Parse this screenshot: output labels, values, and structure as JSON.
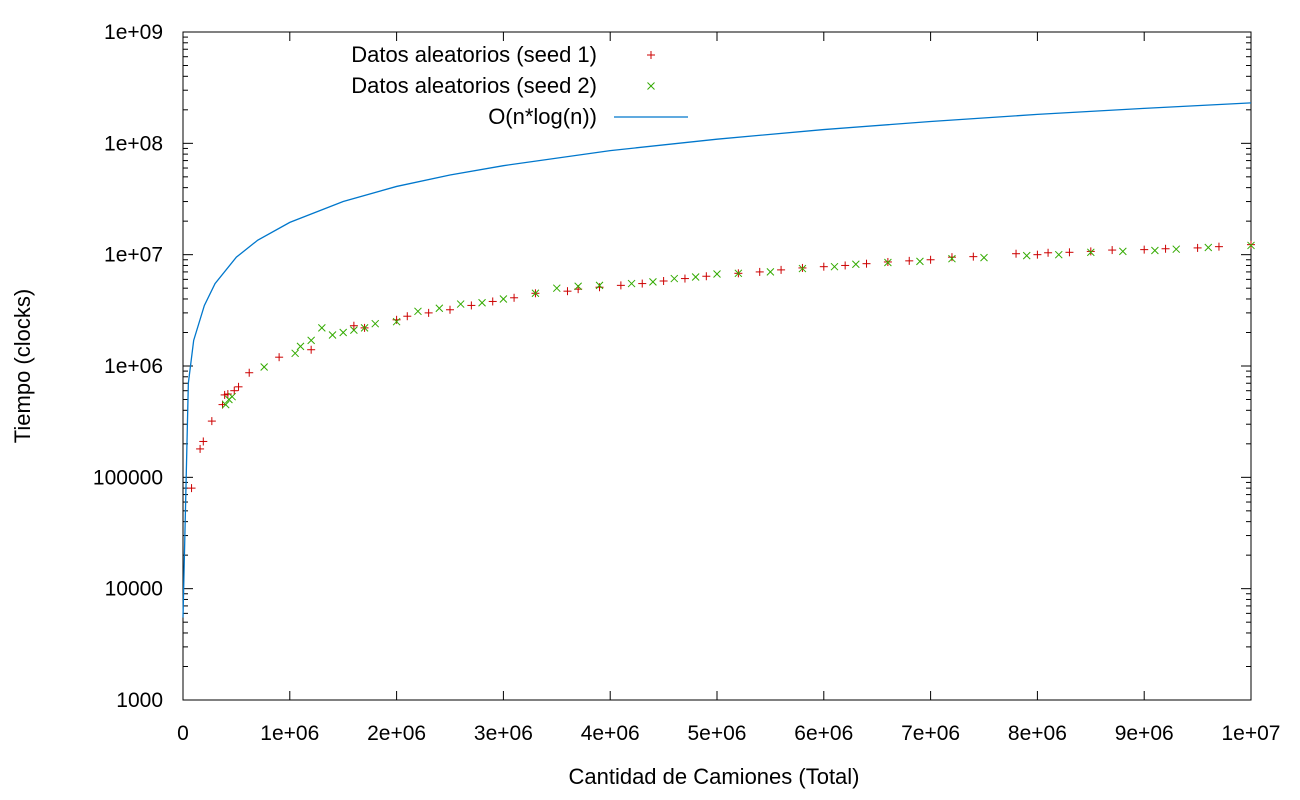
{
  "chart_data": {
    "type": "scatter",
    "title": "",
    "xlabel": "Cantidad de Camiones (Total)",
    "ylabel": "Tiempo (clocks)",
    "xlim": [
      0,
      10000000
    ],
    "ylim": [
      1000,
      1000000000
    ],
    "yscale": "log",
    "grid": false,
    "legend_position": "top-left",
    "x_ticks": [
      {
        "value": 0,
        "label": "0"
      },
      {
        "value": 1000000,
        "label": "1e+06"
      },
      {
        "value": 2000000,
        "label": "2e+06"
      },
      {
        "value": 3000000,
        "label": "3e+06"
      },
      {
        "value": 4000000,
        "label": "4e+06"
      },
      {
        "value": 5000000,
        "label": "5e+06"
      },
      {
        "value": 6000000,
        "label": "6e+06"
      },
      {
        "value": 7000000,
        "label": "7e+06"
      },
      {
        "value": 8000000,
        "label": "8e+06"
      },
      {
        "value": 9000000,
        "label": "9e+06"
      },
      {
        "value": 10000000,
        "label": "1e+07"
      }
    ],
    "y_ticks": [
      {
        "value": 1000,
        "label": "1000"
      },
      {
        "value": 10000,
        "label": "10000"
      },
      {
        "value": 100000,
        "label": "100000"
      },
      {
        "value": 1000000,
        "label": "1e+06"
      },
      {
        "value": 10000000,
        "label": "1e+07"
      },
      {
        "value": 100000000,
        "label": "1e+08"
      },
      {
        "value": 1000000000,
        "label": "1e+09"
      }
    ],
    "series": [
      {
        "name": "Datos aleatorios (seed 1)",
        "kind": "points",
        "marker": "plus",
        "color": "#cc0000",
        "x": [
          80000,
          160000,
          190000,
          270000,
          370000,
          390000,
          420000,
          480000,
          520000,
          620000,
          900000,
          1200000,
          1600000,
          1700000,
          2000000,
          2100000,
          2300000,
          2500000,
          2700000,
          2900000,
          3100000,
          3300000,
          3600000,
          3700000,
          3900000,
          4100000,
          4300000,
          4500000,
          4700000,
          4900000,
          5200000,
          5400000,
          5600000,
          5800000,
          6000000,
          6200000,
          6400000,
          6600000,
          6800000,
          7000000,
          7200000,
          7400000,
          7800000,
          8000000,
          8100000,
          8300000,
          8500000,
          8700000,
          9000000,
          9200000,
          9500000,
          9700000,
          10000000
        ],
        "y": [
          80000,
          180000,
          210000,
          320000,
          450000,
          550000,
          560000,
          600000,
          650000,
          870000,
          1200000,
          1400000,
          2300000,
          2200000,
          2600000,
          2800000,
          3000000,
          3200000,
          3500000,
          3800000,
          4100000,
          4500000,
          4700000,
          4900000,
          5100000,
          5300000,
          5500000,
          5800000,
          6100000,
          6400000,
          6800000,
          7000000,
          7300000,
          7600000,
          7800000,
          8000000,
          8300000,
          8600000,
          8800000,
          9000000,
          9500000,
          9600000,
          10200000,
          10000000,
          10400000,
          10500000,
          10700000,
          11000000,
          11100000,
          11300000,
          11500000,
          11800000,
          12300000
        ]
      },
      {
        "name": "Datos aleatorios (seed 2)",
        "kind": "points",
        "marker": "cross",
        "color": "#33aa00",
        "x": [
          400000,
          430000,
          460000,
          760000,
          1050000,
          1100000,
          1200000,
          1300000,
          1400000,
          1500000,
          1600000,
          1700000,
          1800000,
          2000000,
          2200000,
          2400000,
          2600000,
          2800000,
          3000000,
          3300000,
          3500000,
          3700000,
          3900000,
          4200000,
          4400000,
          4600000,
          4800000,
          5000000,
          5200000,
          5500000,
          5800000,
          6100000,
          6300000,
          6600000,
          6900000,
          7200000,
          7500000,
          7900000,
          8200000,
          8500000,
          8800000,
          9100000,
          9300000,
          9600000,
          10000000
        ],
        "y": [
          450000,
          500000,
          530000,
          980000,
          1300000,
          1500000,
          1700000,
          2200000,
          1900000,
          2000000,
          2100000,
          2200000,
          2400000,
          2500000,
          3100000,
          3300000,
          3600000,
          3700000,
          4000000,
          4500000,
          5000000,
          5200000,
          5300000,
          5500000,
          5700000,
          6100000,
          6300000,
          6700000,
          6800000,
          7000000,
          7500000,
          7800000,
          8200000,
          8500000,
          8700000,
          9200000,
          9400000,
          9800000,
          10000000,
          10500000,
          10700000,
          10900000,
          11200000,
          11600000,
          12100000
        ]
      },
      {
        "name": "O(n*log(n))",
        "kind": "line",
        "color": "#0077cc",
        "x": [
          0,
          50000,
          100000,
          200000,
          300000,
          500000,
          700000,
          1000000,
          1500000,
          2000000,
          2500000,
          3000000,
          4000000,
          5000000,
          6000000,
          7000000,
          8000000,
          9000000,
          10000000
        ],
        "y": [
          5500,
          700000,
          1700000,
          3500000,
          5500000,
          9500000,
          13500000,
          19500000,
          30000000,
          41000000,
          52000000,
          63000000,
          86000000,
          109000000,
          133000000,
          157000000,
          182000000,
          206000000,
          231000000
        ]
      }
    ]
  }
}
